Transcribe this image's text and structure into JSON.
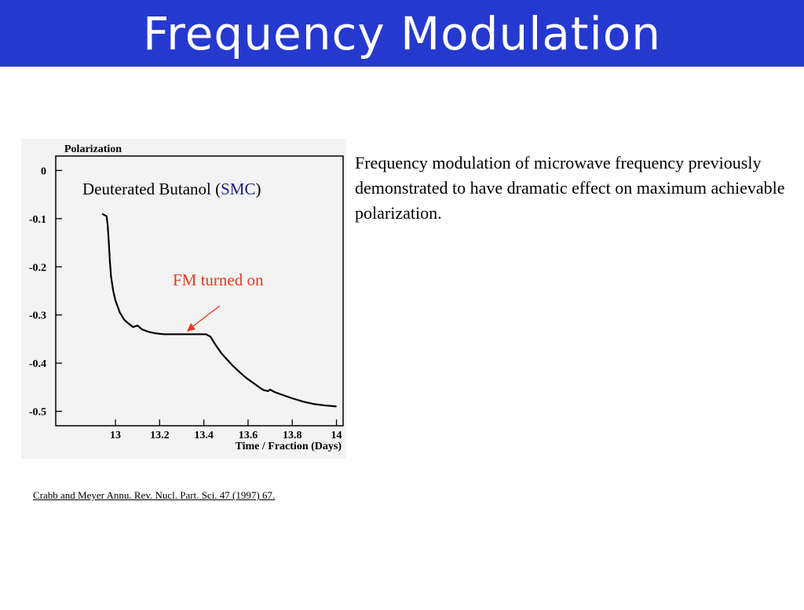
{
  "slide": {
    "title": "Frequency Modulation",
    "description": "Frequency modulation of microwave frequency previously demonstrated to have dramatic effect on maximum achievable polarization.",
    "citation": "Crabb and Meyer Annu. Rev. Nucl. Part. Sci. 47 (1997) 67."
  },
  "colors": {
    "title_bar": "#2639cf",
    "annotation_red": "#e8381c",
    "smc_blue": "#1a1a8c"
  },
  "chart_data": {
    "type": "line",
    "ylabel": "Polarization",
    "xlabel": "Time / Fraction (Days)",
    "sample_label_prefix": "Deuterated Butanol ",
    "sample_label_open": "(",
    "sample_label_highlight": "SMC",
    "sample_label_close": ")",
    "annotation": "FM turned on",
    "annotation_x": 13.42,
    "xlim": [
      12.73,
      14.03
    ],
    "ylim": [
      -0.53,
      0.03
    ],
    "xticks": [
      13,
      13.2,
      13.4,
      13.6,
      13.8,
      14
    ],
    "xtick_labels": [
      "13",
      "13.2",
      "13.4",
      "13.6",
      "13.8",
      "14"
    ],
    "yticks": [
      0,
      -0.1,
      -0.2,
      -0.3,
      -0.4,
      -0.5
    ],
    "ytick_labels": [
      "0",
      "-0.1",
      "-0.2",
      "-0.3",
      "-0.4",
      "-0.5"
    ],
    "grid": false,
    "series": [
      {
        "x": [
          12.94,
          12.96,
          12.965,
          12.97,
          12.975,
          12.98,
          12.99,
          13.0,
          13.02,
          13.04,
          13.06,
          13.08,
          13.1,
          13.12,
          13.15,
          13.18,
          13.22,
          13.26,
          13.3,
          13.34,
          13.38,
          13.41,
          13.43,
          13.45,
          13.48,
          13.5,
          13.53,
          13.56,
          13.59,
          13.62,
          13.65,
          13.67,
          13.69,
          13.7,
          13.72,
          13.75,
          13.8,
          13.85,
          13.9,
          13.95,
          14.0
        ],
        "y": [
          -0.09,
          -0.095,
          -0.115,
          -0.15,
          -0.19,
          -0.22,
          -0.25,
          -0.27,
          -0.295,
          -0.31,
          -0.318,
          -0.325,
          -0.322,
          -0.33,
          -0.335,
          -0.338,
          -0.34,
          -0.34,
          -0.34,
          -0.34,
          -0.34,
          -0.34,
          -0.345,
          -0.36,
          -0.38,
          -0.39,
          -0.405,
          -0.418,
          -0.43,
          -0.44,
          -0.45,
          -0.456,
          -0.458,
          -0.455,
          -0.46,
          -0.465,
          -0.473,
          -0.48,
          -0.485,
          -0.488,
          -0.49
        ]
      }
    ]
  }
}
